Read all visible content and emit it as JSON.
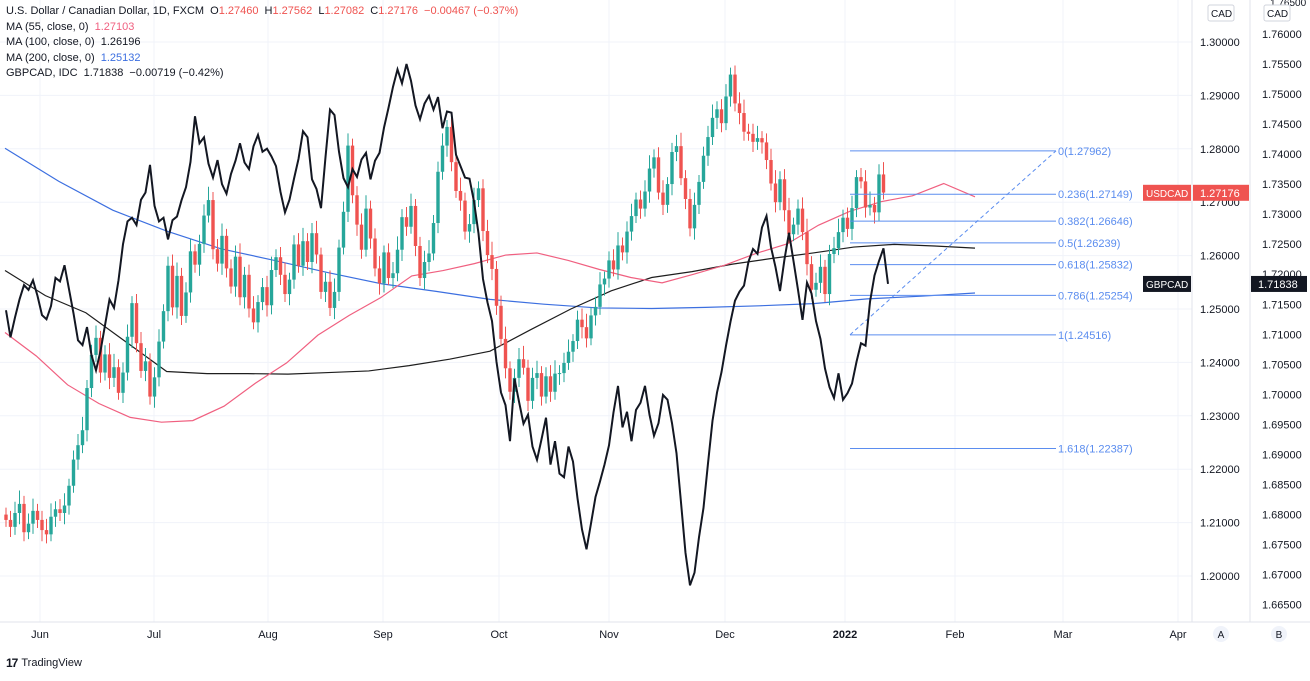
{
  "legend": {
    "title": "U.S. Dollar / Canadian Dollar, 1D, FXCM",
    "ohlc": [
      {
        "k": "O",
        "v": "1.27460"
      },
      {
        "k": "H",
        "v": "1.27562"
      },
      {
        "k": "L",
        "v": "1.27082"
      },
      {
        "k": "C",
        "v": "1.27176"
      }
    ],
    "change": "−0.00467 (−0.37%)",
    "ma55": {
      "label": "MA (55, close, 0)",
      "value": "1.27103"
    },
    "ma100": {
      "label": "MA (100, close, 0)",
      "value": "1.26196"
    },
    "ma200": {
      "label": "MA (200, close, 0)",
      "value": "1.25132"
    },
    "overlay": {
      "label": "GBPCAD, IDC",
      "value": "1.71838",
      "change": "−0.00719 (−0.42%)"
    }
  },
  "colors": {
    "up": "#26a69a",
    "down": "#ef5350",
    "ma55": "#f06080",
    "ma100": "#1e1e1e",
    "ma200": "#3c6fe0",
    "fib": "#5b8def",
    "gbpcad": "#131722",
    "grid": "#f0f3fa",
    "text": "#131722"
  },
  "axis_labels": {
    "right_currency": "CAD",
    "left_currency": "CAD",
    "usdcad_tag": "USDCAD",
    "gbpcad_tag": "GBPCAD",
    "scale_a": "A",
    "scale_b": "B"
  },
  "brand": {
    "name": "TradingView",
    "logo": "17"
  },
  "chart_data": {
    "type": "candlestick",
    "title": "U.S. Dollar / Canadian Dollar, 1D, FXCM",
    "x_labels": [
      "Jun",
      "Jul",
      "Aug",
      "Sep",
      "Oct",
      "Nov",
      "Dec",
      "2022",
      "Feb",
      "Mar",
      "Apr"
    ],
    "y_right_ticks": [
      "1.30000",
      "1.29000",
      "1.28000",
      "1.27000",
      "1.26000",
      "1.25000",
      "1.24000",
      "1.23000",
      "1.22000",
      "1.21000",
      "1.20000"
    ],
    "y_right_range": [
      1.193,
      1.3095
    ],
    "y_far_ticks": [
      "1.76000",
      "1.75500",
      "1.75000",
      "1.74500",
      "1.74000",
      "1.73500",
      "1.73000",
      "1.72500",
      "1.72000",
      "1.71500",
      "1.71000",
      "1.70500",
      "1.70000",
      "1.69500",
      "1.69000",
      "1.68500",
      "1.68000",
      "1.67500",
      "1.67000",
      "1.66500"
    ],
    "y_far_top_partial": "1.76500",
    "y_far_range": [
      1.6615,
      1.7665
    ],
    "last_usdcad": "1.27176",
    "last_gbpcad": "1.71838",
    "usdcad_closes": [
      1.2105,
      1.2092,
      1.2118,
      1.2135,
      1.2082,
      1.2098,
      1.2122,
      1.2105,
      1.2086,
      1.2078,
      1.2111,
      1.2125,
      1.2118,
      1.2132,
      1.2169,
      1.2218,
      1.2245,
      1.2273,
      1.2352,
      1.2414,
      1.2446,
      1.2381,
      1.2415,
      1.2371,
      1.2391,
      1.2343,
      1.2381,
      1.2448,
      1.2511,
      1.2436,
      1.2384,
      1.2402,
      1.2336,
      1.2372,
      1.2439,
      1.2496,
      1.2581,
      1.2503,
      1.2562,
      1.2487,
      1.2531,
      1.2608,
      1.2583,
      1.2622,
      1.2675,
      1.2704,
      1.2612,
      1.2585,
      1.2637,
      1.2576,
      1.2542,
      1.2598,
      1.2522,
      1.2564,
      1.2501,
      1.2475,
      1.2513,
      1.2541,
      1.2507,
      1.2573,
      1.2597,
      1.2564,
      1.2528,
      1.2555,
      1.2621,
      1.2581,
      1.2627,
      1.2588,
      1.2642,
      1.2602,
      1.2532,
      1.2551,
      1.2502,
      1.2532,
      1.2615,
      1.2682,
      1.2806,
      1.2713,
      1.2658,
      1.2611,
      1.2688,
      1.2632,
      1.2576,
      1.2548,
      1.2606,
      1.2558,
      1.2567,
      1.2611,
      1.2672,
      1.2654,
      1.2693,
      1.2618,
      1.2558,
      1.2588,
      1.2604,
      1.2661,
      1.2757,
      1.2806,
      1.2841,
      1.2775,
      1.2721,
      1.2703,
      1.2645,
      1.2659,
      1.2704,
      1.2726,
      1.2646,
      1.2601,
      1.2575,
      1.2506,
      1.2444,
      1.2389,
      1.2345,
      1.2371,
      1.2406,
      1.239,
      1.2328,
      1.2371,
      1.238,
      1.2336,
      1.2374,
      1.2345,
      1.2379,
      1.238,
      1.2399,
      1.242,
      1.244,
      1.248,
      1.2466,
      1.2445,
      1.2488,
      1.2504,
      1.2546,
      1.2557,
      1.2591,
      1.2574,
      1.2619,
      1.2606,
      1.2645,
      1.2674,
      1.2705,
      1.2688,
      1.272,
      1.2763,
      1.2784,
      1.2718,
      1.2695,
      1.2734,
      1.2794,
      1.2805,
      1.2745,
      1.2706,
      1.2651,
      1.2695,
      1.2738,
      1.2787,
      1.2822,
      1.2858,
      1.2874,
      1.2848,
      1.2898,
      1.2939,
      1.2885,
      1.2867,
      1.2832,
      1.2828,
      1.2813,
      1.282,
      1.2812,
      1.2779,
      1.2735,
      1.27,
      1.2743,
      1.2685,
      1.264,
      1.2658,
      1.2688,
      1.2644,
      1.2584,
      1.2536,
      1.2549,
      1.2579,
      1.2528,
      1.2603,
      1.2614,
      1.2644,
      1.2671,
      1.265,
      1.2689,
      1.2747,
      1.2739,
      1.269,
      1.2695,
      1.2681,
      1.2752,
      1.2718
    ],
    "gbpcad_closes": [
      1.714,
      1.7095,
      1.7128,
      1.7158,
      1.7182,
      1.7174,
      1.719,
      1.7164,
      1.7132,
      1.7125,
      1.7147,
      1.7194,
      1.7188,
      1.7215,
      1.7175,
      1.7135,
      1.709,
      1.7082,
      1.7112,
      1.7065,
      1.704,
      1.7072,
      1.7115,
      1.7158,
      1.7144,
      1.719,
      1.725,
      1.7288,
      1.7294,
      1.7282,
      1.7324,
      1.7336,
      1.7382,
      1.7314,
      1.7288,
      1.7294,
      1.7258,
      1.729,
      1.7296,
      1.7323,
      1.7345,
      1.7387,
      1.7463,
      1.7418,
      1.7428,
      1.7384,
      1.7361,
      1.739,
      1.735,
      1.7334,
      1.7367,
      1.7389,
      1.7418,
      1.7386,
      1.7375,
      1.7413,
      1.7432,
      1.7404,
      1.7409,
      1.7396,
      1.738,
      1.7337,
      1.7303,
      1.7324,
      1.7359,
      1.7392,
      1.7438,
      1.7428,
      1.7358,
      1.7342,
      1.731,
      1.7395,
      1.7474,
      1.7465,
      1.7404,
      1.736,
      1.7345,
      1.7375,
      1.7362,
      1.7391,
      1.7402,
      1.7358,
      1.7389,
      1.7402,
      1.7444,
      1.7477,
      1.7512,
      1.7541,
      1.7518,
      1.755,
      1.7522,
      1.7481,
      1.7458,
      1.7484,
      1.7497,
      1.7474,
      1.7495,
      1.7443,
      1.7471,
      1.7469,
      1.7399,
      1.738,
      1.7361,
      1.7359,
      1.7321,
      1.7268,
      1.7192,
      1.7153,
      1.7122,
      1.7054,
      1.7003,
      1.6982,
      1.6922,
      1.7026,
      1.6988,
      1.6951,
      1.6966,
      1.6913,
      1.6891,
      1.6925,
      1.6961,
      1.6883,
      1.6922,
      1.6868,
      1.6862,
      1.6913,
      1.6888,
      1.6827,
      1.6775,
      1.6742,
      1.6785,
      1.6829,
      1.6855,
      1.6883,
      1.6915,
      1.697,
      1.7014,
      1.6945,
      1.6971,
      1.6922,
      1.6974,
      1.6986,
      1.7014,
      1.6966,
      1.6931,
      1.6952,
      1.6999,
      1.6991,
      1.6952,
      1.6902,
      1.682,
      1.6736,
      1.6682,
      1.6703,
      1.6762,
      1.6811,
      1.6885,
      1.6956,
      1.7003,
      1.7037,
      1.7081,
      1.7121,
      1.7156,
      1.7171,
      1.7181,
      1.7221,
      1.7242,
      1.7234,
      1.7278,
      1.7297,
      1.7245,
      1.7212,
      1.7172,
      1.7225,
      1.7269,
      1.7222,
      1.7174,
      1.7124,
      1.7186,
      1.7168,
      1.7122,
      1.7092,
      1.7043,
      1.7012,
      1.6994,
      1.7035,
      1.6991,
      1.7002,
      1.7018,
      1.7054,
      1.7085,
      1.7081,
      1.7154,
      1.7198,
      1.7222,
      1.7243,
      1.7184
    ],
    "ma55_values": [
      1.2456,
      1.2412,
      1.2358,
      1.2323,
      1.2297,
      1.2288,
      1.2291,
      1.2318,
      1.2361,
      1.2399,
      1.2451,
      1.2488,
      1.2521,
      1.2562,
      1.2572,
      1.2585,
      1.2601,
      1.2605,
      1.2591,
      1.2574,
      1.2559,
      1.2549,
      1.2565,
      1.2582,
      1.2604,
      1.2622,
      1.2657,
      1.2683,
      1.2701,
      1.2712,
      1.2735,
      1.271
    ],
    "ma100_values": [
      1.2572,
      1.2525,
      1.2493,
      1.2438,
      1.2383,
      1.2379,
      1.2379,
      1.2378,
      1.2381,
      1.2384,
      1.2394,
      1.2406,
      1.2421,
      1.2461,
      1.25,
      1.2534,
      1.2559,
      1.257,
      1.2584,
      1.2595,
      1.2605,
      1.2616,
      1.2621,
      1.2618,
      1.2614
    ],
    "ma200_values": [
      1.2801,
      1.2739,
      1.2685,
      1.2646,
      1.2613,
      1.2591,
      1.2568,
      1.2547,
      1.2533,
      1.2518,
      1.2509,
      1.2502,
      1.2501,
      1.2503,
      1.2506,
      1.251,
      1.2519,
      1.2524,
      1.253
    ],
    "fibonacci": [
      {
        "label": "0(1.27962)",
        "level": 1.27962
      },
      {
        "label": "0.236(1.27149)",
        "level": 1.27149
      },
      {
        "label": "0.382(1.26646)",
        "level": 1.26646
      },
      {
        "label": "0.5(1.26239)",
        "level": 1.26239
      },
      {
        "label": "0.618(1.25832)",
        "level": 1.25832
      },
      {
        "label": "0.786(1.25254)",
        "level": 1.25254
      },
      {
        "label": "1(1.24516)",
        "level": 1.24516
      },
      {
        "label": "1.618(1.22387)",
        "level": 1.22387
      }
    ],
    "grid": true
  }
}
